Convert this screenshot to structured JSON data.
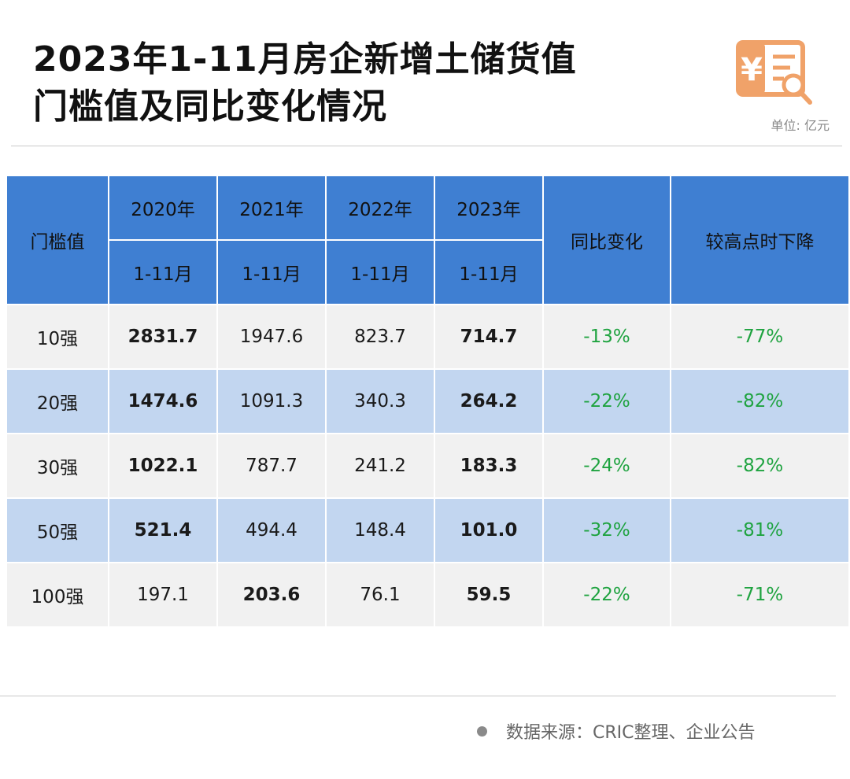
{
  "title": {
    "line1": "2023年1-11月房企新增土储货值",
    "line2": "门槛值及同比变化情况"
  },
  "unit": "单位: 亿元",
  "logo_icon": "yuan-receipt-search-icon",
  "colors": {
    "header": "#3f7fd2",
    "row_odd": "#f1f1f1",
    "row_even": "#c2d6f0",
    "negative": "#1fa340",
    "logo": "#f0a269"
  },
  "table": {
    "header": {
      "threshold": "门槛值",
      "years": [
        "2020年",
        "2021年",
        "2022年",
        "2023年"
      ],
      "period": "1-11月",
      "yoy": "同比变化",
      "drop": "较高点时下降"
    },
    "rows": [
      {
        "rank": "10强",
        "v2020": "2831.7",
        "v2021": "1947.6",
        "v2022": "823.7",
        "v2023": "714.7",
        "yoy": "-13%",
        "drop": "-77%"
      },
      {
        "rank": "20强",
        "v2020": "1474.6",
        "v2021": "1091.3",
        "v2022": "340.3",
        "v2023": "264.2",
        "yoy": "-22%",
        "drop": "-82%"
      },
      {
        "rank": "30强",
        "v2020": "1022.1",
        "v2021": "787.7",
        "v2022": "241.2",
        "v2023": "183.3",
        "yoy": "-24%",
        "drop": "-82%"
      },
      {
        "rank": "50强",
        "v2020": "521.4",
        "v2021": "494.4",
        "v2022": "148.4",
        "v2023": "101.0",
        "yoy": "-32%",
        "drop": "-81%"
      },
      {
        "rank": "100强",
        "v2020": "197.1",
        "v2021": "203.6",
        "v2022": "76.1",
        "v2023": "59.5",
        "yoy": "-22%",
        "drop": "-71%"
      }
    ]
  },
  "chart_data": {
    "type": "table",
    "title": "2023年1-11月房企新增土储货值门槛值及同比变化情况",
    "unit": "亿元",
    "columns": [
      "门槛值",
      "2020年 1-11月",
      "2021年 1-11月",
      "2022年 1-11月",
      "2023年 1-11月",
      "同比变化",
      "较高点时下降"
    ],
    "categories": [
      "10强",
      "20强",
      "30强",
      "50强",
      "100强"
    ],
    "series": [
      {
        "name": "2020年 1-11月",
        "values": [
          2831.7,
          1474.6,
          1022.1,
          521.4,
          197.1
        ]
      },
      {
        "name": "2021年 1-11月",
        "values": [
          1947.6,
          1091.3,
          787.7,
          494.4,
          203.6
        ]
      },
      {
        "name": "2022年 1-11月",
        "values": [
          823.7,
          340.3,
          241.2,
          148.4,
          76.1
        ]
      },
      {
        "name": "2023年 1-11月",
        "values": [
          714.7,
          264.2,
          183.3,
          101.0,
          59.5
        ]
      },
      {
        "name": "同比变化",
        "values": [
          "-13%",
          "-22%",
          "-24%",
          "-32%",
          "-22%"
        ]
      },
      {
        "name": "较高点时下降",
        "values": [
          "-77%",
          "-82%",
          "-82%",
          "-81%",
          "-71%"
        ]
      }
    ]
  },
  "source": "数据来源：CRIC整理、企业公告"
}
